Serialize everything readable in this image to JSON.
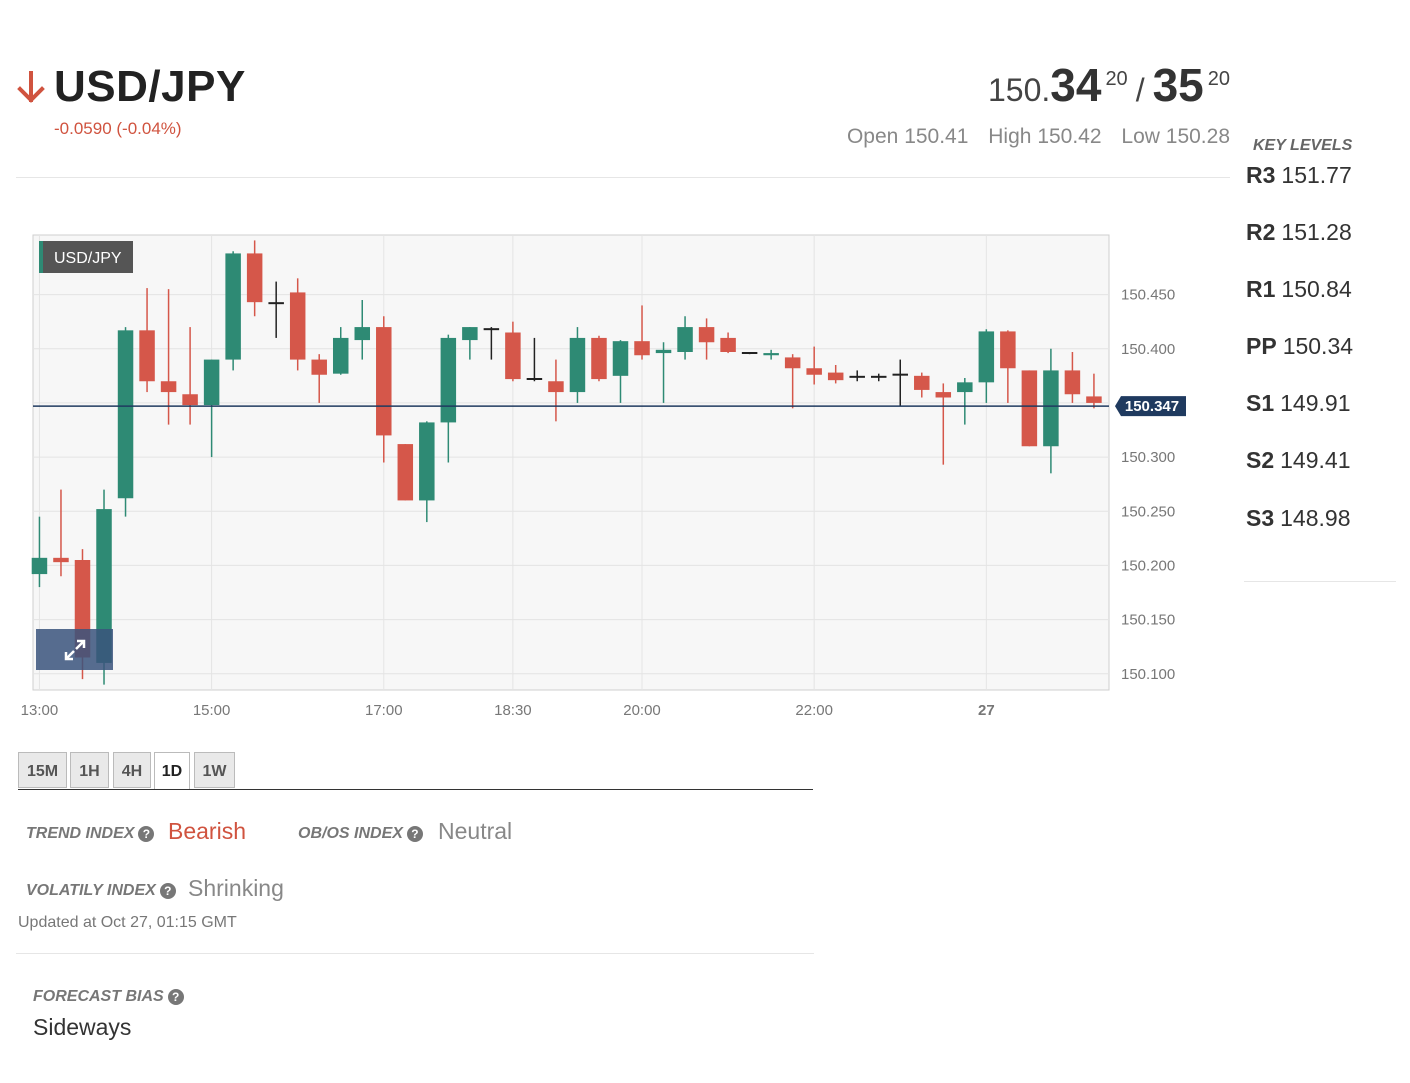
{
  "header": {
    "pair": "USD/JPY",
    "change": "-0.0590 (-0.04%)",
    "direction_icon": "arrow-down-icon",
    "bid_prefix": "150.",
    "bid_big": "34",
    "bid_sup": "20",
    "separator": "/",
    "ask_big": "35",
    "ask_sup": "20",
    "open_label": "Open",
    "open": "150.41",
    "high_label": "High",
    "high": "150.42",
    "low_label": "Low",
    "low": "150.28"
  },
  "key_levels": {
    "title": "KEY LEVELS",
    "items": [
      {
        "name": "R3",
        "value": "151.77"
      },
      {
        "name": "R2",
        "value": "151.28"
      },
      {
        "name": "R1",
        "value": "150.84"
      },
      {
        "name": "PP",
        "value": "150.34"
      },
      {
        "name": "S1",
        "value": "149.91"
      },
      {
        "name": "S2",
        "value": "149.41"
      },
      {
        "name": "S3",
        "value": "148.98"
      }
    ]
  },
  "tabs": [
    {
      "label": "15M",
      "active": false
    },
    {
      "label": "1H",
      "active": false
    },
    {
      "label": "4H",
      "active": false
    },
    {
      "label": "1D",
      "active": true
    },
    {
      "label": "1W",
      "active": false
    }
  ],
  "indices": {
    "trend_label": "TREND INDEX",
    "trend_value": "Bearish",
    "obos_label": "OB/OS INDEX",
    "obos_value": "Neutral",
    "volatility_label": "VOLATILY INDEX",
    "volatility_value": "Shrinking",
    "updated": "Updated at Oct 27, 01:15 GMT",
    "forecast_label": "FORECAST BIAS",
    "forecast_value": "Sideways",
    "help_icon": "question-circle-icon"
  },
  "colors": {
    "bull": "#2e8a74",
    "bear": "#d5574a",
    "doji": "#222222",
    "price_line": "#1f3a5f",
    "price_tag_bg": "#1f3a5f",
    "grid": "#e4e4e4",
    "plot_bg": "#f7f7f7"
  },
  "chart_data": {
    "type": "candlestick",
    "legend": "USD/JPY",
    "current_price": 150.347,
    "current_price_label": "150.347",
    "ylim": [
      150.085,
      150.505
    ],
    "y_ticks": [
      150.1,
      150.15,
      150.2,
      150.25,
      150.3,
      150.35,
      150.4,
      150.45
    ],
    "y_tick_labels": [
      "150.100",
      "150.150",
      "150.200",
      "150.250",
      "150.300",
      "",
      "150.400",
      "150.450"
    ],
    "x_ticks": [
      {
        "label": "13:00",
        "bold": false
      },
      {
        "label": "15:00",
        "bold": false
      },
      {
        "label": "17:00",
        "bold": false
      },
      {
        "label": "18:30",
        "bold": false
      },
      {
        "label": "20:00",
        "bold": false
      },
      {
        "label": "22:00",
        "bold": false
      },
      {
        "label": "27",
        "bold": true
      }
    ],
    "x_tick_index": [
      0,
      8,
      16,
      22,
      28,
      36,
      44
    ],
    "x_offset_bars": -0.2,
    "candles": [
      {
        "o": 150.192,
        "h": 150.245,
        "l": 150.18,
        "c": 150.207
      },
      {
        "o": 150.207,
        "h": 150.27,
        "l": 150.19,
        "c": 150.203
      },
      {
        "o": 150.205,
        "h": 150.215,
        "l": 150.095,
        "c": 150.115
      },
      {
        "o": 150.11,
        "h": 150.27,
        "l": 150.09,
        "c": 150.252
      },
      {
        "o": 150.262,
        "h": 150.42,
        "l": 150.245,
        "c": 150.417
      },
      {
        "o": 150.417,
        "h": 150.456,
        "l": 150.36,
        "c": 150.37
      },
      {
        "o": 150.37,
        "h": 150.455,
        "l": 150.33,
        "c": 150.36
      },
      {
        "o": 150.358,
        "h": 150.42,
        "l": 150.33,
        "c": 150.348
      },
      {
        "o": 150.348,
        "h": 150.39,
        "l": 150.3,
        "c": 150.39
      },
      {
        "o": 150.39,
        "h": 150.49,
        "l": 150.38,
        "c": 150.488
      },
      {
        "o": 150.488,
        "h": 150.5,
        "l": 150.43,
        "c": 150.443
      },
      {
        "o": 150.443,
        "h": 150.462,
        "l": 150.41,
        "c": 150.443
      },
      {
        "o": 150.452,
        "h": 150.465,
        "l": 150.38,
        "c": 150.39
      },
      {
        "o": 150.39,
        "h": 150.395,
        "l": 150.35,
        "c": 150.376
      },
      {
        "o": 150.377,
        "h": 150.42,
        "l": 150.376,
        "c": 150.41
      },
      {
        "o": 150.408,
        "h": 150.445,
        "l": 150.39,
        "c": 150.42
      },
      {
        "o": 150.42,
        "h": 150.43,
        "l": 150.295,
        "c": 150.32
      },
      {
        "o": 150.312,
        "h": 150.312,
        "l": 150.26,
        "c": 150.26
      },
      {
        "o": 150.26,
        "h": 150.333,
        "l": 150.24,
        "c": 150.332
      },
      {
        "o": 150.332,
        "h": 150.413,
        "l": 150.295,
        "c": 150.41
      },
      {
        "o": 150.408,
        "h": 150.42,
        "l": 150.39,
        "c": 150.42
      },
      {
        "o": 150.419,
        "h": 150.42,
        "l": 150.39,
        "c": 150.418
      },
      {
        "o": 150.415,
        "h": 150.425,
        "l": 150.37,
        "c": 150.372
      },
      {
        "o": 150.373,
        "h": 150.41,
        "l": 150.37,
        "c": 150.373
      },
      {
        "o": 150.37,
        "h": 150.39,
        "l": 150.333,
        "c": 150.36
      },
      {
        "o": 150.36,
        "h": 150.42,
        "l": 150.35,
        "c": 150.41
      },
      {
        "o": 150.41,
        "h": 150.412,
        "l": 150.37,
        "c": 150.372
      },
      {
        "o": 150.375,
        "h": 150.408,
        "l": 150.35,
        "c": 150.407
      },
      {
        "o": 150.407,
        "h": 150.44,
        "l": 150.39,
        "c": 150.394
      },
      {
        "o": 150.396,
        "h": 150.406,
        "l": 150.35,
        "c": 150.399
      },
      {
        "o": 150.397,
        "h": 150.43,
        "l": 150.39,
        "c": 150.42
      },
      {
        "o": 150.42,
        "h": 150.428,
        "l": 150.39,
        "c": 150.406
      },
      {
        "o": 150.41,
        "h": 150.415,
        "l": 150.396,
        "c": 150.397
      },
      {
        "o": 150.397,
        "h": 150.397,
        "l": 150.395,
        "c": 150.396
      },
      {
        "o": 150.394,
        "h": 150.399,
        "l": 150.39,
        "c": 150.396
      },
      {
        "o": 150.392,
        "h": 150.395,
        "l": 150.345,
        "c": 150.382
      },
      {
        "o": 150.382,
        "h": 150.402,
        "l": 150.367,
        "c": 150.376
      },
      {
        "o": 150.378,
        "h": 150.385,
        "l": 150.368,
        "c": 150.371
      },
      {
        "o": 150.374,
        "h": 150.38,
        "l": 150.37,
        "c": 150.375
      },
      {
        "o": 150.375,
        "h": 150.377,
        "l": 150.37,
        "c": 150.375
      },
      {
        "o": 150.376,
        "h": 150.39,
        "l": 150.347,
        "c": 150.377
      },
      {
        "o": 150.375,
        "h": 150.378,
        "l": 150.355,
        "c": 150.362
      },
      {
        "o": 150.36,
        "h": 150.368,
        "l": 150.293,
        "c": 150.355
      },
      {
        "o": 150.36,
        "h": 150.373,
        "l": 150.33,
        "c": 150.369
      },
      {
        "o": 150.369,
        "h": 150.418,
        "l": 150.35,
        "c": 150.416
      },
      {
        "o": 150.416,
        "h": 150.417,
        "l": 150.35,
        "c": 150.382
      },
      {
        "o": 150.38,
        "h": 150.38,
        "l": 150.31,
        "c": 150.31
      },
      {
        "o": 150.31,
        "h": 150.4,
        "l": 150.285,
        "c": 150.38
      },
      {
        "o": 150.38,
        "h": 150.397,
        "l": 150.35,
        "c": 150.358
      },
      {
        "o": 150.356,
        "h": 150.377,
        "l": 150.345,
        "c": 150.35
      }
    ]
  }
}
